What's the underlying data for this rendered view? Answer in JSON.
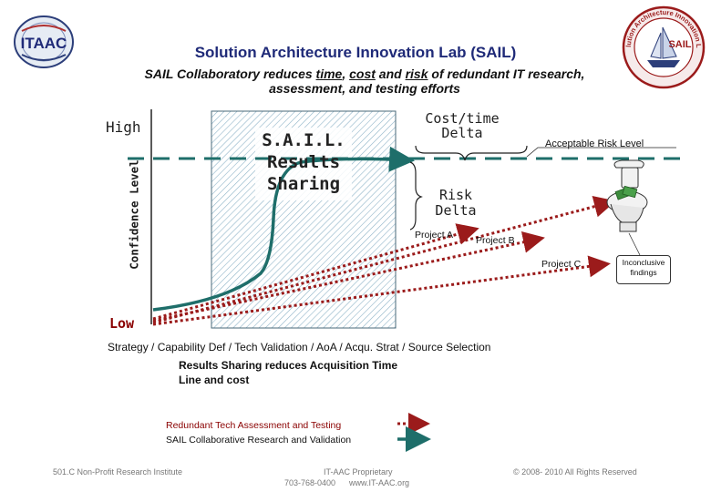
{
  "header": {
    "title": "Solution Architecture Innovation Lab (SAIL)",
    "subtitle_parts": [
      "SAIL Collaboratory reduces ",
      "time",
      ", ",
      "cost",
      " and ",
      "risk",
      " of redundant IT research,"
    ],
    "subtitle_line2": "assessment, and testing efforts"
  },
  "logos": {
    "left_text": "ITAAC",
    "right_ring_text": "Solution Architecture Innovation Lab",
    "right_center_text": "SAIL"
  },
  "diagram": {
    "high_label": "High",
    "low_label": "Low",
    "y_axis_label": "Confidence Level",
    "sail_results_lines": [
      "S.A.I.L.",
      "Results",
      "Sharing"
    ],
    "cost_time_delta_lines": [
      "Cost/time",
      "Delta"
    ],
    "acceptable_risk_label": "Acceptable Risk Level",
    "risk_delta_lines": [
      "Risk",
      "Delta"
    ],
    "project_a": "Project A",
    "project_b": "Project B",
    "project_c": "Project C",
    "inconclusive_lines": [
      "Inconclusive",
      "findings"
    ],
    "colors": {
      "teal": "#1e6e6a",
      "red": "#9b1b1b",
      "hatch": "#8fb4c8",
      "dashed_line": "#1e6e6a"
    }
  },
  "bottom": {
    "phases": "Strategy / Capability Def / Tech Validation / AoA / Acqu. Strat / Source Selection",
    "results_line1": "Results Sharing reduces Acquisition Time",
    "results_line2": "Line and cost"
  },
  "legend": {
    "red_label": "Redundant Tech Assessment and Testing",
    "teal_label": "SAIL Collaborative Research and Validation"
  },
  "footer": {
    "left": "501.C Non-Profit Research Institute",
    "middle_line1": "IT-AAC Proprietary",
    "middle_line2": "703-768-0400      www.IT-AAC.org",
    "right": "© 2008- 2010 All Rights Reserved"
  }
}
